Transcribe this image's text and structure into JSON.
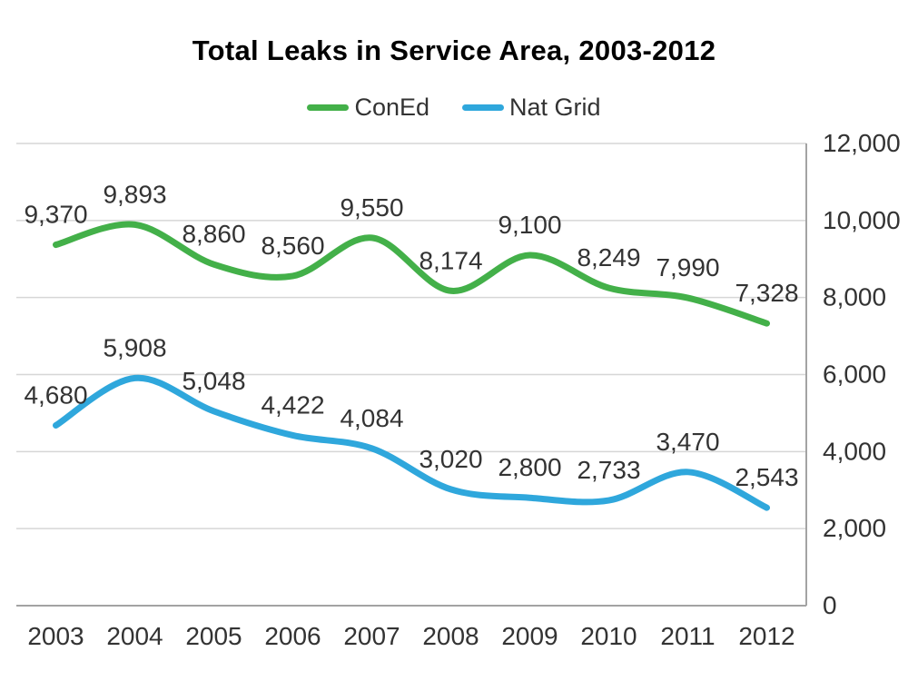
{
  "chart_data": {
    "type": "line",
    "title": "Total Leaks in Service Area, 2003-2012",
    "xlabel": "",
    "ylabel": "",
    "categories": [
      "2003",
      "2004",
      "2005",
      "2006",
      "2007",
      "2008",
      "2009",
      "2010",
      "2011",
      "2012"
    ],
    "series": [
      {
        "name": "ConEd",
        "color": "#43B049",
        "values": [
          9370,
          9893,
          8860,
          8560,
          9550,
          8174,
          9100,
          8249,
          7990,
          7328
        ],
        "labels": [
          "9,370",
          "9,893",
          "8,860",
          "8,560",
          "9,550",
          "8,174",
          "9,100",
          "8,249",
          "7,990",
          "7,328"
        ]
      },
      {
        "name": "Nat Grid",
        "color": "#2FA7DC",
        "values": [
          4680,
          5908,
          5048,
          4422,
          4084,
          3020,
          2800,
          2733,
          3470,
          2543
        ],
        "labels": [
          "4,680",
          "5,908",
          "5,048",
          "4,422",
          "4,084",
          "3,020",
          "2,800",
          "2,733",
          "3,470",
          "2,543"
        ]
      }
    ],
    "ylim": [
      0,
      12000
    ],
    "yticks": [
      {
        "value": 0,
        "label": "0"
      },
      {
        "value": 2000,
        "label": "2,000"
      },
      {
        "value": 4000,
        "label": "4,000"
      },
      {
        "value": 6000,
        "label": "6,000"
      },
      {
        "value": 8000,
        "label": "8,000"
      },
      {
        "value": 10000,
        "label": "10,000"
      },
      {
        "value": 12000,
        "label": "12,000"
      }
    ],
    "grid": true,
    "smooth": true,
    "legend_position": "top",
    "y_axis_side": "right",
    "data_labels": true
  },
  "colors": {
    "grid": "#d6d6d6",
    "axis": "#a3a3a3",
    "text": "#333333",
    "title": "#000000",
    "background": "#ffffff"
  }
}
